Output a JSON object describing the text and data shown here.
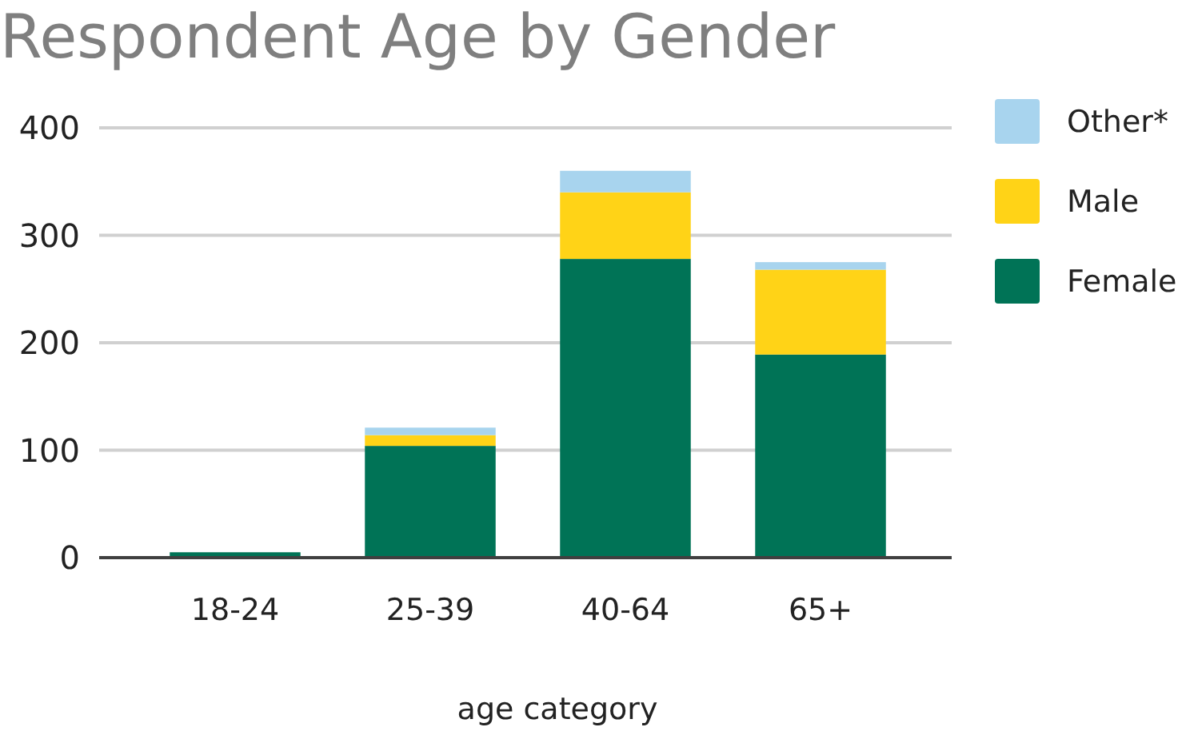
{
  "chart_data": {
    "type": "bar",
    "title": "Respondent Age by Gender",
    "xlabel": "age category",
    "categories": [
      "18-24",
      "25-39",
      "40-64",
      "65+"
    ],
    "stacked": true,
    "series": [
      {
        "name": "Female",
        "color": "#007356",
        "values": [
          5,
          104,
          278,
          189
        ]
      },
      {
        "name": "Male",
        "color": "#ffd317",
        "values": [
          0,
          10,
          62,
          79
        ]
      },
      {
        "name": "Other*",
        "color": "#a8d4ee",
        "values": [
          0,
          7,
          20,
          7
        ]
      }
    ],
    "ylim": [
      0,
      400
    ],
    "yticks": [
      0,
      100,
      200,
      300,
      400
    ],
    "grid": "y",
    "legend": "right"
  }
}
